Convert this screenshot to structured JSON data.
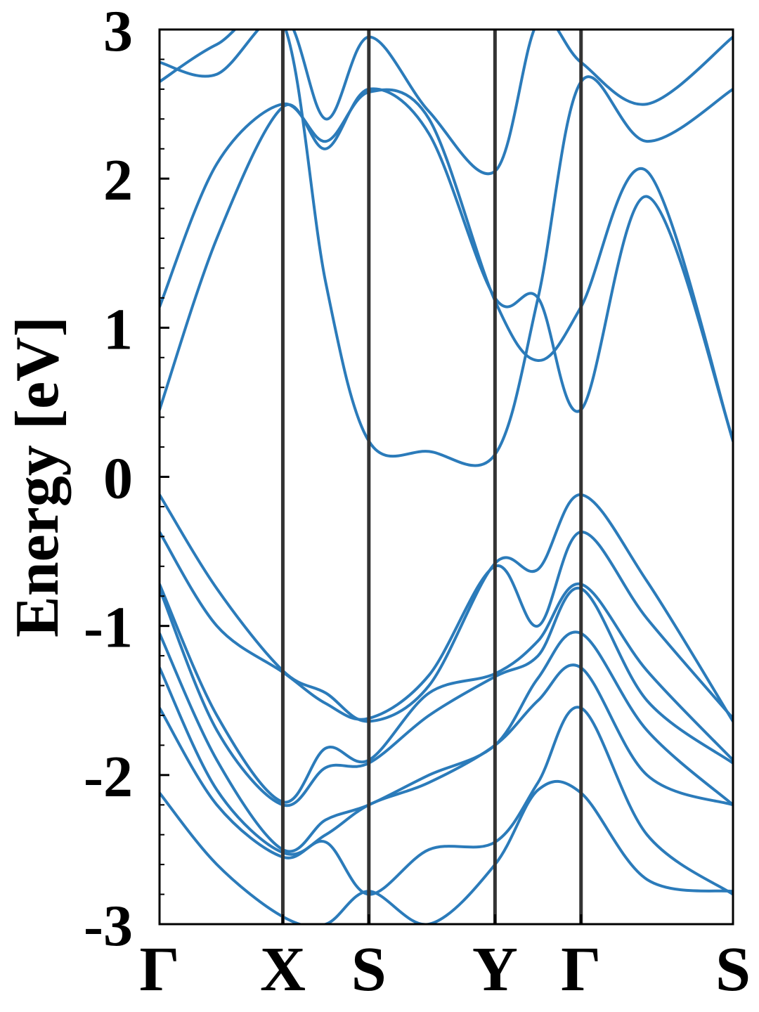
{
  "chart_data": {
    "type": "line",
    "title": "",
    "xlabel": "",
    "ylabel": "Energy [eV]",
    "ylim": [
      -3,
      3
    ],
    "y_ticks": [
      {
        "value": 3,
        "label": "3"
      },
      {
        "value": 2,
        "label": "2"
      },
      {
        "value": 1,
        "label": "1"
      },
      {
        "value": 0,
        "label": "0"
      },
      {
        "value": -1,
        "label": "-1"
      },
      {
        "value": -2,
        "label": "-2"
      },
      {
        "value": -3,
        "label": "-3"
      }
    ],
    "y_minor_step": 0.2,
    "k_points": [
      {
        "label": "Γ",
        "k": 0.0
      },
      {
        "label": "X",
        "k": 0.215
      },
      {
        "label": "S",
        "k": 0.365
      },
      {
        "label": "Y",
        "k": 0.585
      },
      {
        "label": "Γ",
        "k": 0.735
      },
      {
        "label": "S",
        "k": 1.0
      }
    ],
    "grid": false,
    "legend": "none",
    "line_color": "#2b7bba",
    "kpoint_line_color": "#333333",
    "series": [
      {
        "x": [
          0,
          0.1,
          0.215,
          0.29,
          0.365,
          0.47,
          0.585,
          0.66,
          0.735,
          0.85,
          1.0
        ],
        "y": [
          -0.12,
          -0.75,
          -1.3,
          -1.45,
          -1.64,
          -1.4,
          -0.58,
          -0.62,
          -0.12,
          -0.7,
          -1.64
        ]
      },
      {
        "x": [
          0,
          0.1,
          0.215,
          0.29,
          0.365,
          0.47,
          0.585,
          0.66,
          0.735,
          0.85,
          1.0
        ],
        "y": [
          -0.37,
          -1.0,
          -1.31,
          -1.52,
          -1.62,
          -1.33,
          -0.6,
          -1.0,
          -0.37,
          -0.95,
          -1.62
        ]
      },
      {
        "x": [
          0,
          0.1,
          0.215,
          0.29,
          0.365,
          0.47,
          0.585,
          0.66,
          0.735,
          0.85,
          1.0
        ],
        "y": [
          -0.72,
          -1.6,
          -2.18,
          -1.82,
          -1.9,
          -1.45,
          -1.32,
          -1.1,
          -0.72,
          -1.3,
          -1.9
        ]
      },
      {
        "x": [
          0,
          0.1,
          0.215,
          0.29,
          0.365,
          0.47,
          0.585,
          0.66,
          0.735,
          0.85,
          1.0
        ],
        "y": [
          -0.75,
          -1.7,
          -2.2,
          -1.95,
          -1.92,
          -1.6,
          -1.34,
          -1.2,
          -0.75,
          -1.5,
          -1.92
        ]
      },
      {
        "x": [
          0,
          0.1,
          0.215,
          0.29,
          0.365,
          0.47,
          0.585,
          0.66,
          0.735,
          0.85,
          1.0
        ],
        "y": [
          -1.05,
          -1.9,
          -2.5,
          -2.3,
          -2.2,
          -2.0,
          -1.8,
          -1.35,
          -1.05,
          -1.7,
          -2.2
        ]
      },
      {
        "x": [
          0,
          0.1,
          0.215,
          0.29,
          0.365,
          0.47,
          0.585,
          0.66,
          0.735,
          0.85,
          1.0
        ],
        "y": [
          -1.28,
          -2.1,
          -2.52,
          -2.4,
          -2.2,
          -2.05,
          -1.8,
          -1.5,
          -1.28,
          -2.0,
          -2.2
        ]
      },
      {
        "x": [
          0,
          0.1,
          0.215,
          0.29,
          0.365,
          0.47,
          0.585,
          0.66,
          0.735,
          0.85,
          1.0
        ],
        "y": [
          -1.55,
          -2.2,
          -2.55,
          -2.45,
          -2.8,
          -2.5,
          -2.45,
          -2.05,
          -1.55,
          -2.4,
          -2.8
        ]
      },
      {
        "x": [
          0,
          0.1,
          0.215,
          0.29,
          0.365,
          0.47,
          0.585,
          0.66,
          0.735,
          0.85,
          1.0
        ],
        "y": [
          -2.12,
          -2.6,
          -2.95,
          -3.0,
          -2.78,
          -3.0,
          -2.6,
          -2.1,
          -2.12,
          -2.7,
          -2.78
        ]
      },
      {
        "x": [
          0,
          0.1,
          0.215,
          0.29,
          0.365,
          0.47,
          0.585,
          0.66,
          0.735,
          0.85,
          1.0
        ],
        "y": [
          0.45,
          1.6,
          2.48,
          2.2,
          2.6,
          2.3,
          1.2,
          1.2,
          0.45,
          1.88,
          0.25
        ]
      },
      {
        "x": [
          0,
          0.1,
          0.215,
          0.29,
          0.365,
          0.47,
          0.585,
          0.66,
          0.735,
          0.85,
          1.0
        ],
        "y": [
          1.14,
          2.1,
          2.5,
          2.25,
          2.58,
          2.4,
          1.18,
          0.78,
          1.14,
          2.05,
          0.24
        ]
      },
      {
        "x": [
          0,
          0.1,
          0.215,
          0.29,
          0.365,
          0.47,
          0.585,
          0.66,
          0.735,
          0.85,
          1.0
        ],
        "y": [
          2.65,
          2.9,
          3.05,
          1.3,
          0.24,
          0.17,
          0.15,
          1.2,
          2.65,
          2.25,
          2.6
        ]
      },
      {
        "x": [
          0,
          0.1,
          0.215,
          0.29,
          0.365,
          0.47,
          0.585,
          0.66,
          0.735,
          0.85,
          1.0
        ],
        "y": [
          2.78,
          2.7,
          3.1,
          2.4,
          2.95,
          2.45,
          2.05,
          3.05,
          2.78,
          2.5,
          2.95
        ]
      }
    ]
  }
}
